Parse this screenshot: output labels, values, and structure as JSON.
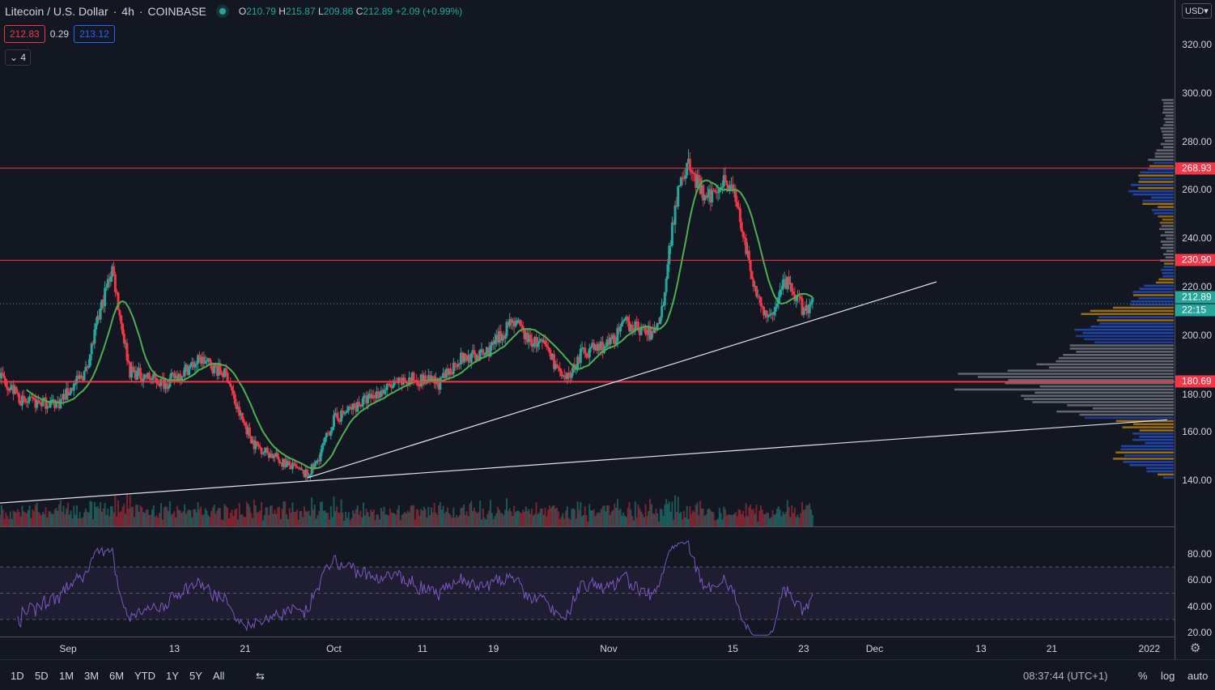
{
  "header": {
    "symbol": "Litecoin / U.S. Dollar",
    "interval": "4h",
    "exchange": "COINBASE",
    "o_label": "O",
    "o": "210.79",
    "h_label": "H",
    "h": "215.87",
    "l_label": "L",
    "l": "209.86",
    "c_label": "C",
    "c": "212.89",
    "change": "+2.09 (+0.99%)",
    "bid": "212.83",
    "spread": "0.29",
    "ask": "213.12",
    "indicators_toggle": "4"
  },
  "price_axis": {
    "currency": "USD",
    "ticks": [
      "320.00",
      "300.00",
      "280.00",
      "260.00",
      "240.00",
      "220.00",
      "200.00",
      "180.00",
      "160.00",
      "140.00"
    ],
    "levels": [
      "268.93",
      "230.90",
      "180.69"
    ],
    "last_price": "212.89",
    "countdown": "22:15"
  },
  "rsi_axis": {
    "ticks": [
      "80.00",
      "60.00",
      "40.00",
      "20.00"
    ]
  },
  "time_axis": {
    "ticks": [
      {
        "label": "Sep",
        "date": "2021-09-01"
      },
      {
        "label": "13",
        "date": "2021-09-13"
      },
      {
        "label": "21",
        "date": "2021-09-21"
      },
      {
        "label": "Oct",
        "date": "2021-10-01"
      },
      {
        "label": "11",
        "date": "2021-10-11"
      },
      {
        "label": "19",
        "date": "2021-10-19"
      },
      {
        "label": "Nov",
        "date": "2021-11-01"
      },
      {
        "label": "15",
        "date": "2021-11-15"
      },
      {
        "label": "23",
        "date": "2021-11-23"
      },
      {
        "label": "Dec",
        "date": "2021-12-01"
      },
      {
        "label": "13",
        "date": "2021-12-13"
      },
      {
        "label": "21",
        "date": "2021-12-21"
      },
      {
        "label": "2022",
        "date": "2022-01-01"
      }
    ]
  },
  "bottom": {
    "ranges": [
      "1D",
      "5D",
      "1M",
      "3M",
      "6M",
      "YTD",
      "1Y",
      "5Y",
      "All"
    ],
    "time": "08:37:44 (UTC+1)",
    "percent": "%",
    "log": "log",
    "auto": "auto"
  },
  "colors": {
    "up": "#26a69a",
    "down": "#f23645",
    "ma": "#4caf50",
    "rsi": "#7e57c2",
    "level": "#f23645"
  },
  "chart_data": {
    "type": "candlestick",
    "interval": "4h",
    "ylim": [
      130,
      330
    ],
    "approx_close_path": [
      [
        "2021-08-24",
        185
      ],
      [
        "2021-08-27",
        172
      ],
      [
        "2021-08-31",
        172
      ],
      [
        "2021-09-03",
        185
      ],
      [
        "2021-09-05",
        215
      ],
      [
        "2021-09-06",
        228
      ],
      [
        "2021-09-07",
        205
      ],
      [
        "2021-09-08",
        185
      ],
      [
        "2021-09-12",
        180
      ],
      [
        "2021-09-16",
        190
      ],
      [
        "2021-09-19",
        183
      ],
      [
        "2021-09-20",
        170
      ],
      [
        "2021-09-22",
        155
      ],
      [
        "2021-09-25",
        148
      ],
      [
        "2021-09-28",
        142
      ],
      [
        "2021-09-29",
        147
      ],
      [
        "2021-10-01",
        165
      ],
      [
        "2021-10-04",
        172
      ],
      [
        "2021-10-07",
        178
      ],
      [
        "2021-10-10",
        182
      ],
      [
        "2021-10-13",
        180
      ],
      [
        "2021-10-15",
        190
      ],
      [
        "2021-10-18",
        192
      ],
      [
        "2021-10-20",
        200
      ],
      [
        "2021-10-21",
        207
      ],
      [
        "2021-10-23",
        198
      ],
      [
        "2021-10-25",
        195
      ],
      [
        "2021-10-27",
        180
      ],
      [
        "2021-10-29",
        193
      ],
      [
        "2021-11-01",
        196
      ],
      [
        "2021-11-03",
        205
      ],
      [
        "2021-11-06",
        200
      ],
      [
        "2021-11-07",
        210
      ],
      [
        "2021-11-08",
        240
      ],
      [
        "2021-11-09",
        265
      ],
      [
        "2021-11-10",
        270
      ],
      [
        "2021-11-12",
        255
      ],
      [
        "2021-11-14",
        265
      ],
      [
        "2021-11-15",
        260
      ],
      [
        "2021-11-16",
        245
      ],
      [
        "2021-11-17",
        225
      ],
      [
        "2021-11-19",
        205
      ],
      [
        "2021-11-20",
        215
      ],
      [
        "2021-11-21",
        222
      ],
      [
        "2021-11-23",
        210
      ],
      [
        "2021-11-24",
        212.89
      ]
    ],
    "horizontal_levels": [
      268.93,
      230.9,
      180.69
    ],
    "trendlines": [
      [
        [
          "2021-09-28",
          141
        ],
        [
          "2021-12-08",
          222
        ]
      ],
      [
        [
          "2021-08-24",
          130.5
        ],
        [
          "2022-01-03",
          165
        ]
      ]
    ],
    "rsi_bands": [
      70,
      50,
      30
    ]
  }
}
